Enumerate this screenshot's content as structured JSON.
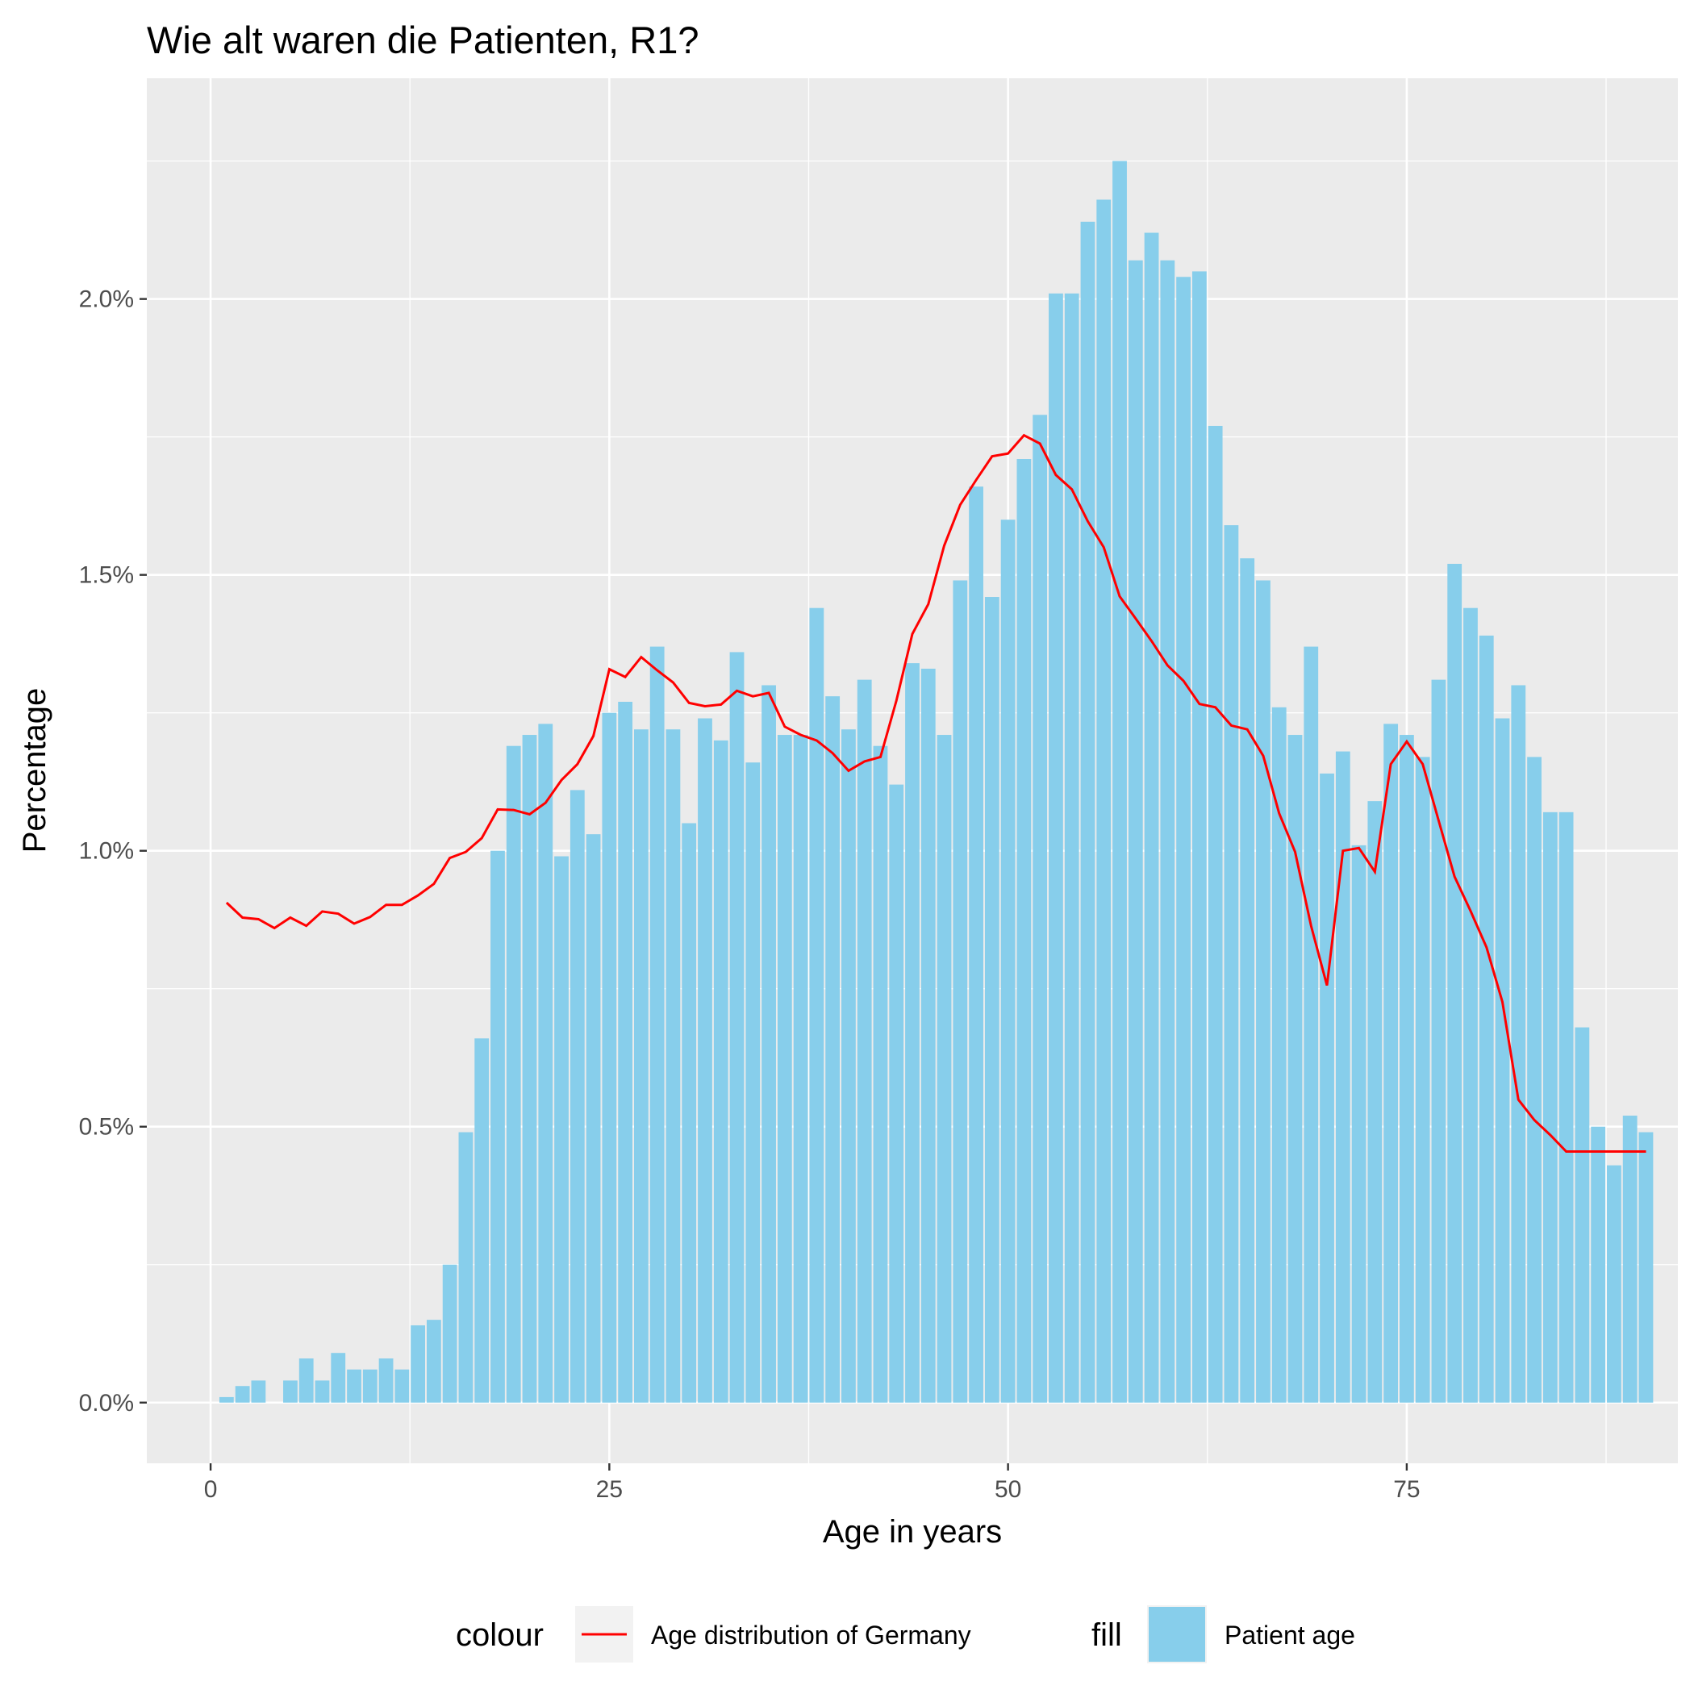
{
  "chart_data": {
    "type": "bar",
    "title": "Wie alt waren die Patienten, R1?",
    "xlabel": "Age in years",
    "ylabel": "Percentage",
    "xlim": [
      -4,
      92
    ],
    "ylim": [
      -0.11,
      2.4
    ],
    "x_ticks": [
      0,
      25,
      50,
      75
    ],
    "x_tick_labels": [
      "0",
      "25",
      "50",
      "75"
    ],
    "y_ticks": [
      0,
      0.5,
      1.0,
      1.5,
      2.0
    ],
    "y_tick_labels": [
      "0.0%",
      "0.5%",
      "1.0%",
      "1.5%",
      "2.0%"
    ],
    "grid": true,
    "legend_position": "bottom",
    "legend": {
      "colour_title": "colour",
      "colour_label": "Age distribution of Germany",
      "fill_title": "fill",
      "fill_label": "Patient age"
    },
    "colors": {
      "bars": "#87CEEB",
      "line": "#FF0000",
      "panel": "#EBEBEB",
      "grid": "#FFFFFF"
    },
    "series": [
      {
        "kind": "bar",
        "x": [
          1,
          2,
          3,
          4,
          5,
          6,
          7,
          8,
          9,
          10,
          11,
          12,
          13,
          14,
          15,
          16,
          17,
          18,
          19,
          20,
          21,
          22,
          23,
          24,
          25,
          26,
          27,
          28,
          29,
          30,
          31,
          32,
          33,
          34,
          35,
          36,
          37,
          38,
          39,
          40,
          41,
          42,
          43,
          44,
          45,
          46,
          47,
          48,
          49,
          50,
          51,
          52,
          53,
          54,
          55,
          56,
          57,
          58,
          59,
          60,
          61,
          62,
          63,
          64,
          65,
          66,
          67,
          68,
          69,
          70,
          71,
          72,
          73,
          74,
          75,
          76,
          77,
          78,
          79,
          80,
          81,
          82,
          83,
          84,
          85,
          86,
          87,
          88,
          89,
          90
        ],
        "values": [
          0.01,
          0.03,
          0.04,
          0.0,
          0.04,
          0.08,
          0.04,
          0.09,
          0.06,
          0.06,
          0.08,
          0.06,
          0.14,
          0.15,
          0.25,
          0.49,
          0.66,
          1.0,
          1.19,
          1.21,
          1.23,
          0.99,
          1.11,
          1.03,
          1.25,
          1.27,
          1.22,
          1.37,
          1.22,
          1.05,
          1.24,
          1.2,
          1.36,
          1.16,
          1.3,
          1.21,
          1.21,
          1.44,
          1.28,
          1.22,
          1.31,
          1.19,
          1.12,
          1.34,
          1.33,
          1.21,
          1.49,
          1.66,
          1.46,
          1.6,
          1.71,
          1.79,
          2.01,
          2.01,
          2.14,
          2.18,
          2.25,
          2.07,
          2.12,
          2.07,
          2.04,
          2.05,
          1.77,
          1.59,
          1.53,
          1.49,
          1.26,
          1.21,
          1.37,
          1.14,
          1.18,
          1.01,
          1.09,
          1.23,
          1.21,
          1.17,
          1.31,
          1.52,
          1.44,
          1.39,
          1.24,
          1.3,
          1.17,
          1.07,
          1.07,
          0.68,
          0.5,
          0.43,
          0.52,
          0.49
        ]
      },
      {
        "kind": "line",
        "x": [
          1,
          2,
          3,
          4,
          5,
          6,
          7,
          8,
          9,
          10,
          11,
          12,
          13,
          14,
          15,
          16,
          17,
          18,
          19,
          20,
          21,
          22,
          23,
          24,
          25,
          26,
          27,
          28,
          29,
          30,
          31,
          32,
          33,
          34,
          35,
          36,
          37,
          38,
          39,
          40,
          41,
          42,
          43,
          44,
          45,
          46,
          47,
          48,
          49,
          50,
          51,
          52,
          53,
          54,
          55,
          56,
          57,
          58,
          59,
          60,
          61,
          62,
          63,
          64,
          65,
          66,
          67,
          68,
          69,
          70,
          71,
          72,
          73,
          74,
          75,
          76,
          77,
          78,
          79,
          80,
          81,
          82,
          83,
          84,
          85,
          86,
          87,
          88,
          89,
          90
        ],
        "values": [
          0.906,
          0.879,
          0.876,
          0.86,
          0.879,
          0.864,
          0.89,
          0.886,
          0.868,
          0.88,
          0.902,
          0.902,
          0.919,
          0.94,
          0.987,
          0.998,
          1.023,
          1.075,
          1.074,
          1.066,
          1.087,
          1.128,
          1.157,
          1.208,
          1.329,
          1.315,
          1.351,
          1.327,
          1.305,
          1.268,
          1.262,
          1.265,
          1.29,
          1.28,
          1.286,
          1.225,
          1.21,
          1.2,
          1.177,
          1.145,
          1.162,
          1.17,
          1.272,
          1.393,
          1.447,
          1.553,
          1.627,
          1.672,
          1.715,
          1.72,
          1.753,
          1.738,
          1.681,
          1.655,
          1.597,
          1.55,
          1.461,
          1.421,
          1.38,
          1.336,
          1.308,
          1.266,
          1.26,
          1.227,
          1.22,
          1.172,
          1.068,
          0.998,
          0.864,
          0.756,
          1.0,
          1.005,
          0.962,
          1.157,
          1.198,
          1.157,
          1.055,
          0.953,
          0.891,
          0.825,
          0.726,
          0.549,
          0.512,
          0.485,
          0.455,
          0.455,
          0.455,
          0.455,
          0.455,
          0.455
        ]
      }
    ]
  }
}
